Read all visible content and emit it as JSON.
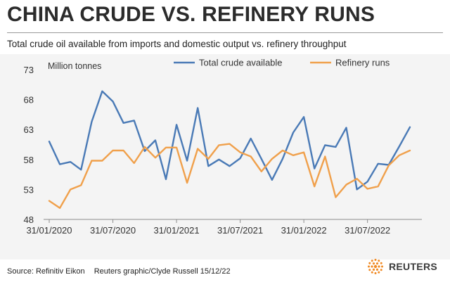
{
  "header": {
    "title": "CHINA CRUDE VS. REFINERY RUNS",
    "subtitle": "Total crude oil available from imports and domestic output vs. refinery throughput"
  },
  "footer": {
    "source": "Source: Refinitiv Eikon",
    "credit": "Reuters graphic/Clyde Russell 15/12/22",
    "logo_text": "REUTERS"
  },
  "colors": {
    "total": "#4a7ab6",
    "refinery": "#f0a04b",
    "logo_orange": "#f08a24"
  },
  "chart_data": {
    "type": "line",
    "unit_label": "Million tonnes",
    "ylim": [
      48,
      73
    ],
    "y_ticks": [
      48,
      53,
      58,
      63,
      68,
      73
    ],
    "x_tick_labels": [
      "31/01/2020",
      "31/07/2020",
      "31/01/2021",
      "31/07/2021",
      "31/01/2022",
      "31/07/2022"
    ],
    "x_tick_indices": [
      0,
      6,
      12,
      18,
      24,
      30
    ],
    "legend_position": "top-right",
    "grid": false,
    "x": [
      "2020-01",
      "2020-02",
      "2020-03",
      "2020-04",
      "2020-05",
      "2020-06",
      "2020-07",
      "2020-08",
      "2020-09",
      "2020-10",
      "2020-11",
      "2020-12",
      "2021-01",
      "2021-02",
      "2021-03",
      "2021-04",
      "2021-05",
      "2021-06",
      "2021-07",
      "2021-08",
      "2021-09",
      "2021-10",
      "2021-11",
      "2021-12",
      "2022-01",
      "2022-02",
      "2022-03",
      "2022-04",
      "2022-05",
      "2022-06",
      "2022-07",
      "2022-08",
      "2022-09",
      "2022-10",
      "2022-11"
    ],
    "series": [
      {
        "name": "Total crude available",
        "values": [
          61.0,
          57.2,
          57.6,
          56.3,
          64.3,
          69.4,
          67.7,
          64.1,
          64.5,
          59.4,
          61.2,
          54.7,
          63.8,
          57.8,
          66.6,
          56.9,
          58.0,
          56.9,
          58.2,
          61.5,
          58.1,
          54.6,
          58.1,
          62.5,
          65.1,
          56.5,
          60.4,
          60.1,
          63.3,
          53.0,
          54.3,
          57.3,
          57.1,
          60.2,
          63.4
        ]
      },
      {
        "name": "Refinery runs",
        "values": [
          51.1,
          49.9,
          53.0,
          53.7,
          57.8,
          57.8,
          59.5,
          59.5,
          57.4,
          60.1,
          58.3,
          60.0,
          60.0,
          54.1,
          59.8,
          58.1,
          60.4,
          60.6,
          59.2,
          58.5,
          56.0,
          58.1,
          59.5,
          58.7,
          59.2,
          53.5,
          58.5,
          51.7,
          53.8,
          54.8,
          53.1,
          53.5,
          57.0,
          58.7,
          59.5
        ]
      }
    ]
  }
}
